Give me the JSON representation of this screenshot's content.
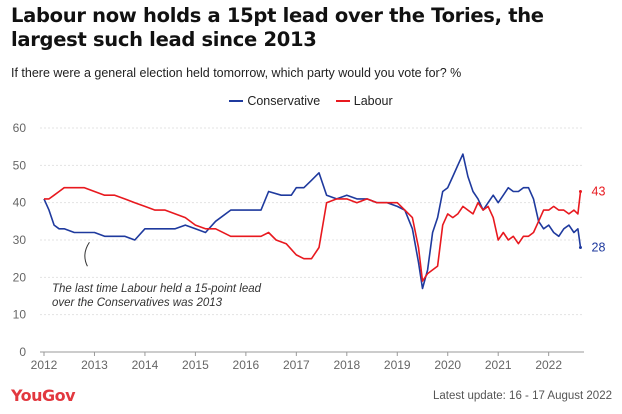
{
  "header": {
    "title": "Labour now holds a 15pt lead over the Tories, the largest such lead since 2013",
    "subtitle": "If there were a general election held tomorrow, which party would you vote for? %"
  },
  "footer": {
    "brand": "YouGov",
    "updated": "Latest update: 16 - 17 August 2022"
  },
  "colors": {
    "conservative": "#1f3a9e",
    "labour": "#e8191f"
  },
  "chart_data": {
    "type": "line",
    "title": "Labour now holds a 15pt lead over the Tories, the largest such lead since 2013",
    "xlabel": "",
    "ylabel": "%",
    "xlim": [
      2012,
      2022.7
    ],
    "ylim": [
      0,
      60
    ],
    "yticks": [
      0,
      10,
      20,
      30,
      40,
      50,
      60
    ],
    "xticks": [
      2012,
      2013,
      2014,
      2015,
      2016,
      2017,
      2018,
      2019,
      2020,
      2021,
      2022
    ],
    "xtick_labels": [
      "2012",
      "2013",
      "2014",
      "2015",
      "2016",
      "2017",
      "2018",
      "2019",
      "2020",
      "2021",
      "2022"
    ],
    "legend": {
      "position": "top-center",
      "entries": [
        "Conservative",
        "Labour"
      ]
    },
    "series": [
      {
        "name": "Conservative",
        "color": "#1f3a9e",
        "end_label": "28",
        "x": [
          2012.0,
          2012.1,
          2012.2,
          2012.3,
          2012.4,
          2012.6,
          2012.8,
          2013.0,
          2013.2,
          2013.4,
          2013.6,
          2013.8,
          2014.0,
          2014.2,
          2014.4,
          2014.6,
          2014.8,
          2015.0,
          2015.2,
          2015.4,
          2015.7,
          2016.0,
          2016.3,
          2016.45,
          2016.7,
          2016.9,
          2017.0,
          2017.15,
          2017.3,
          2017.45,
          2017.6,
          2017.8,
          2018.0,
          2018.2,
          2018.4,
          2018.6,
          2018.8,
          2019.0,
          2019.15,
          2019.3,
          2019.42,
          2019.5,
          2019.6,
          2019.7,
          2019.8,
          2019.9,
          2020.0,
          2020.1,
          2020.2,
          2020.3,
          2020.4,
          2020.5,
          2020.6,
          2020.7,
          2020.8,
          2020.9,
          2021.0,
          2021.1,
          2021.2,
          2021.3,
          2021.4,
          2021.5,
          2021.6,
          2021.7,
          2021.8,
          2021.9,
          2022.0,
          2022.1,
          2022.2,
          2022.3,
          2022.4,
          2022.5,
          2022.58,
          2022.63
        ],
        "values": [
          41,
          38,
          34,
          33,
          33,
          32,
          32,
          32,
          31,
          31,
          31,
          30,
          33,
          33,
          33,
          33,
          34,
          33,
          32,
          35,
          38,
          38,
          38,
          43,
          42,
          42,
          44,
          44,
          46,
          48,
          42,
          41,
          42,
          41,
          41,
          40,
          40,
          39,
          38,
          33,
          24,
          17,
          22,
          32,
          36,
          43,
          44,
          47,
          50,
          53,
          47,
          43,
          41,
          38,
          40,
          42,
          40,
          42,
          44,
          43,
          43,
          44,
          44,
          41,
          35,
          33,
          34,
          32,
          31,
          33,
          34,
          32,
          33,
          28
        ]
      },
      {
        "name": "Labour",
        "color": "#e8191f",
        "end_label": "43",
        "x": [
          2012.0,
          2012.1,
          2012.2,
          2012.3,
          2012.4,
          2012.6,
          2012.8,
          2013.0,
          2013.2,
          2013.4,
          2013.6,
          2013.8,
          2014.0,
          2014.2,
          2014.4,
          2014.6,
          2014.8,
          2015.0,
          2015.2,
          2015.4,
          2015.7,
          2016.0,
          2016.3,
          2016.45,
          2016.6,
          2016.8,
          2017.0,
          2017.15,
          2017.3,
          2017.45,
          2017.6,
          2017.8,
          2018.0,
          2018.2,
          2018.4,
          2018.6,
          2018.8,
          2019.0,
          2019.15,
          2019.3,
          2019.42,
          2019.5,
          2019.6,
          2019.7,
          2019.8,
          2019.9,
          2020.0,
          2020.1,
          2020.2,
          2020.3,
          2020.4,
          2020.5,
          2020.6,
          2020.7,
          2020.8,
          2020.9,
          2021.0,
          2021.1,
          2021.2,
          2021.3,
          2021.4,
          2021.5,
          2021.6,
          2021.7,
          2021.8,
          2021.9,
          2022.0,
          2022.1,
          2022.2,
          2022.3,
          2022.4,
          2022.5,
          2022.58,
          2022.63
        ],
        "values": [
          41,
          41,
          42,
          43,
          44,
          44,
          44,
          43,
          42,
          42,
          41,
          40,
          39,
          38,
          38,
          37,
          36,
          34,
          33,
          33,
          31,
          31,
          31,
          32,
          30,
          29,
          26,
          25,
          25,
          28,
          40,
          41,
          41,
          40,
          41,
          40,
          40,
          40,
          38,
          36,
          28,
          19,
          21,
          22,
          23,
          34,
          37,
          36,
          37,
          39,
          38,
          37,
          40,
          38,
          39,
          36,
          30,
          32,
          30,
          31,
          29,
          31,
          31,
          32,
          35,
          38,
          38,
          39,
          38,
          38,
          37,
          38,
          37,
          43
        ]
      }
    ],
    "annotation": {
      "text": [
        "The last time Labour held a 15-point lead",
        "over the Conservatives was 2013"
      ],
      "x": 2012.9,
      "y": 31
    }
  }
}
